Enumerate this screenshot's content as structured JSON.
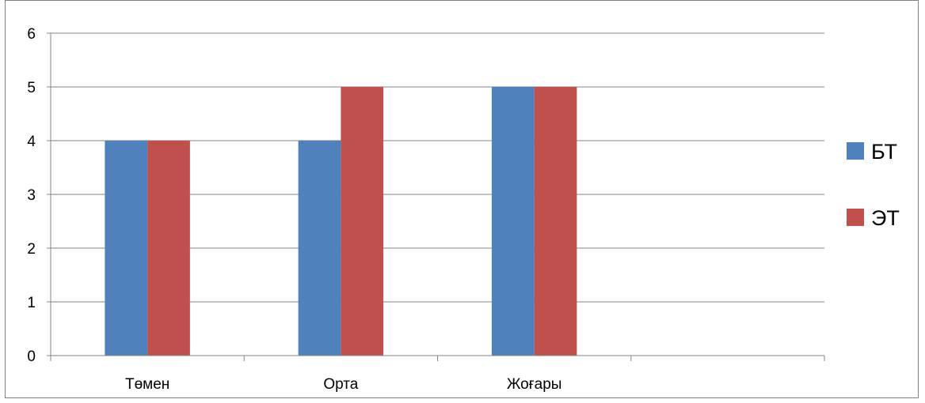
{
  "chart_data": {
    "type": "bar",
    "categories": [
      "Төмен",
      "Орта",
      "Жоғары",
      ""
    ],
    "series": [
      {
        "name": "БТ",
        "color": "#4F81BD",
        "values": [
          4,
          4,
          5,
          null
        ]
      },
      {
        "name": "ЭТ",
        "color": "#C0504D",
        "values": [
          4,
          5,
          5,
          null
        ]
      }
    ],
    "y_ticks": [
      0,
      1,
      2,
      3,
      4,
      5,
      6
    ],
    "ylim": [
      0,
      6
    ],
    "grid": true,
    "legend_position": "right"
  }
}
